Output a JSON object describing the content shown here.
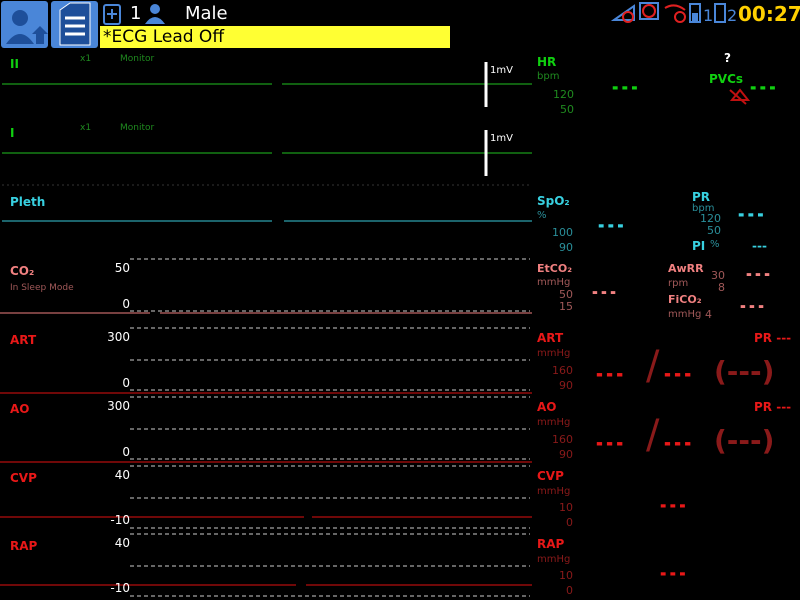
{
  "header": {
    "bed": "1",
    "gender": "Male",
    "alarm": "*ECG Lead Off",
    "battery_1": "1",
    "battery_2": "2",
    "time": "00:27"
  },
  "waves": [
    {
      "label": "II",
      "gain": "x1",
      "mode": "Monitor",
      "scale": "1mV"
    },
    {
      "label": "I",
      "gain": "x1",
      "mode": "Monitor",
      "scale": "1mV"
    },
    {
      "label": "Pleth"
    },
    {
      "label": "CO₂",
      "status": "In Sleep Mode",
      "scale_high": "50",
      "scale_low": "0"
    },
    {
      "label": "ART",
      "scale_high": "300",
      "scale_low": "0"
    },
    {
      "label": "AO",
      "scale_high": "300",
      "scale_low": "0"
    },
    {
      "label": "CVP",
      "scale_high": "40",
      "scale_low": "-10"
    },
    {
      "label": "RAP",
      "scale_high": "40",
      "scale_low": "-10"
    }
  ],
  "params": {
    "hr": {
      "label": "HR",
      "unit": "bpm",
      "high": "120",
      "low": "50",
      "value": "---"
    },
    "pvcs": {
      "status": "?",
      "label": "PVCs",
      "value": "---"
    },
    "spo2": {
      "label": "SpO₂",
      "unit": "%",
      "high": "100",
      "low": "90",
      "value": "---"
    },
    "pr": {
      "label": "PR",
      "unit": "bpm",
      "high": "120",
      "low": "50",
      "value": "---"
    },
    "pi": {
      "label": "PI",
      "unit": "%",
      "value": "---"
    },
    "etco2": {
      "label": "EtCO₂",
      "unit": "mmHg",
      "high": "50",
      "low": "15",
      "value": "---"
    },
    "awrr": {
      "label": "AwRR",
      "unit": "rpm",
      "high": "30",
      "low": "8",
      "value": "---"
    },
    "fico2": {
      "label": "FiCO₂",
      "unit": "mmHg",
      "high": "4",
      "value": "---"
    },
    "art": {
      "label": "ART",
      "unit": "mmHg",
      "high": "160",
      "low": "90",
      "systolic": "---",
      "separator": "/",
      "diastolic": "---",
      "mean": "(---)",
      "pr": "PR ---"
    },
    "ao": {
      "label": "AO",
      "unit": "mmHg",
      "high": "160",
      "low": "90",
      "systolic": "---",
      "separator": "/",
      "diastolic": "---",
      "mean": "(---)",
      "pr": "PR ---"
    },
    "cvp": {
      "label": "CVP",
      "unit": "mmHg",
      "high": "10",
      "low": "0",
      "value": "---"
    },
    "rap": {
      "label": "RAP",
      "unit": "mmHg",
      "high": "10",
      "low": "0",
      "value": "---"
    }
  }
}
